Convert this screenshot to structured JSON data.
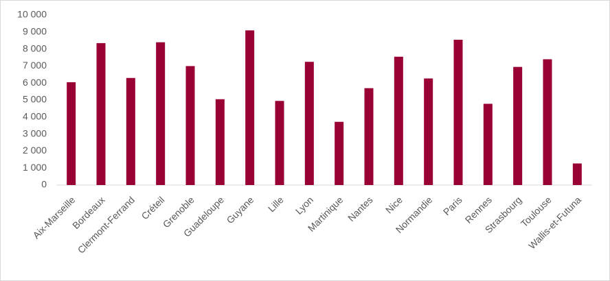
{
  "chart_data": {
    "type": "bar",
    "categories": [
      "Aix-Marseille",
      "Bordeaux",
      "Clermont-Ferrand",
      "Créteil",
      "Grenoble",
      "Guadeloupe",
      "Guyane",
      "Lille",
      "Lyon",
      "Martinique",
      "Nantes",
      "Nice",
      "Normandie",
      "Paris",
      "Rennes",
      "Strasbourg",
      "Toulouse",
      "Wallis-et-Futuna"
    ],
    "values": [
      6050,
      8350,
      6300,
      8400,
      7000,
      5050,
      9100,
      4950,
      7250,
      3720,
      5700,
      7550,
      6270,
      8550,
      4780,
      6950,
      7400,
      1270
    ],
    "color": "#990033",
    "ylim": [
      0,
      10000
    ],
    "yticks": [
      0,
      {
        "value": 1000,
        "label": "1 000"
      },
      {
        "value": 2000,
        "label": "2 000"
      },
      {
        "value": 3000,
        "label": "3 000"
      },
      {
        "value": 4000,
        "label": "4 000"
      },
      {
        "value": 5000,
        "label": "5 000"
      },
      {
        "value": 6000,
        "label": "6 000"
      },
      {
        "value": 7000,
        "label": "7 000"
      },
      {
        "value": 8000,
        "label": "8 000"
      },
      {
        "value": 9000,
        "label": "9 000"
      },
      {
        "value": 10000,
        "label": "10 000"
      }
    ],
    "grid": false
  }
}
